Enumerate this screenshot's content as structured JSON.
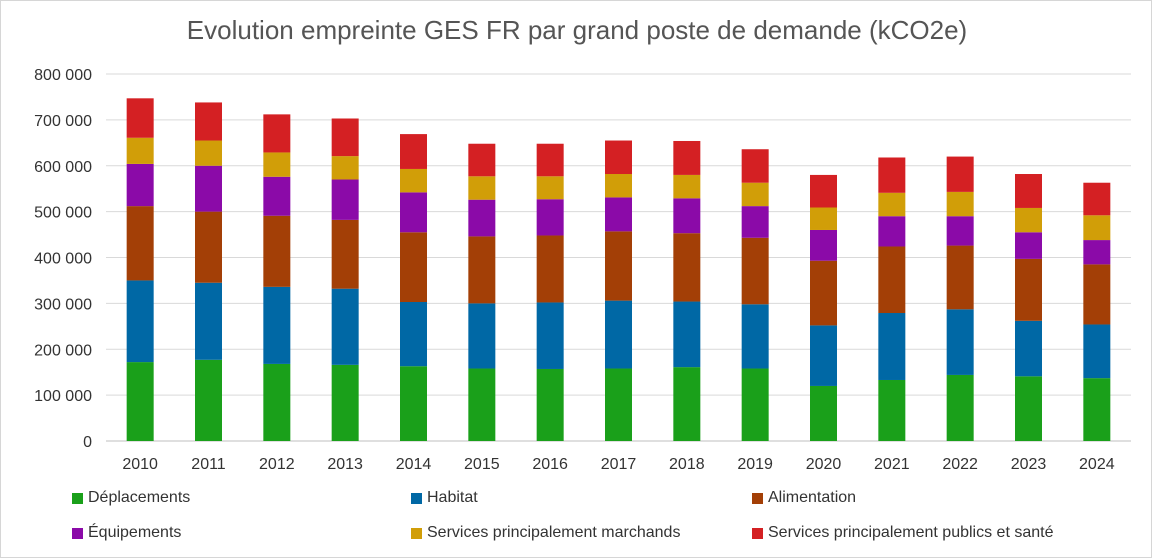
{
  "chart_data": {
    "type": "bar",
    "stacked": true,
    "title": "Evolution empreinte GES FR par grand poste de demande (kCO2e)",
    "categories": [
      "2010",
      "2011",
      "2012",
      "2013",
      "2014",
      "2015",
      "2016",
      "2017",
      "2018",
      "2019",
      "2020",
      "2021",
      "2022",
      "2023",
      "2024"
    ],
    "ylim": [
      0,
      800000
    ],
    "yticks": [
      0,
      100000,
      200000,
      300000,
      400000,
      500000,
      600000,
      700000,
      800000
    ],
    "ytick_labels": [
      "0",
      "100 000",
      "200 000",
      "300 000",
      "400 000",
      "500 000",
      "600 000",
      "700 000",
      "800 000"
    ],
    "grid": true,
    "legend_position": "bottom",
    "series": [
      {
        "name": "Déplacements",
        "color": "#1AA01A",
        "values": [
          172000,
          177000,
          168000,
          166000,
          163000,
          158000,
          157000,
          158000,
          161000,
          158000,
          120000,
          133000,
          144000,
          141000,
          137000
        ]
      },
      {
        "name": "Habitat",
        "color": "#0068A5",
        "values": [
          178000,
          168000,
          168000,
          166000,
          140000,
          142000,
          145000,
          148000,
          143000,
          140000,
          132000,
          146000,
          143000,
          121000,
          117000
        ]
      },
      {
        "name": "Alimentation",
        "color": "#A33F06",
        "values": [
          162000,
          155000,
          155000,
          150000,
          152000,
          146000,
          146000,
          151000,
          149000,
          145000,
          141000,
          145000,
          139000,
          135000,
          131000
        ]
      },
      {
        "name": "Équipements",
        "color": "#8B0AA8",
        "values": [
          92000,
          100000,
          85000,
          88000,
          87000,
          80000,
          79000,
          74000,
          76000,
          69000,
          67000,
          66000,
          64000,
          58000,
          53000
        ]
      },
      {
        "name": "Services principalement marchands",
        "color": "#D19E08",
        "values": [
          57000,
          55000,
          53000,
          51000,
          51000,
          51000,
          50000,
          51000,
          51000,
          51000,
          49000,
          51000,
          53000,
          53000,
          54000
        ]
      },
      {
        "name": "Services principalement publics et santé",
        "color": "#D42023",
        "values": [
          86000,
          83000,
          83000,
          82000,
          76000,
          71000,
          71000,
          73000,
          74000,
          73000,
          71000,
          77000,
          77000,
          74000,
          71000
        ]
      }
    ]
  }
}
